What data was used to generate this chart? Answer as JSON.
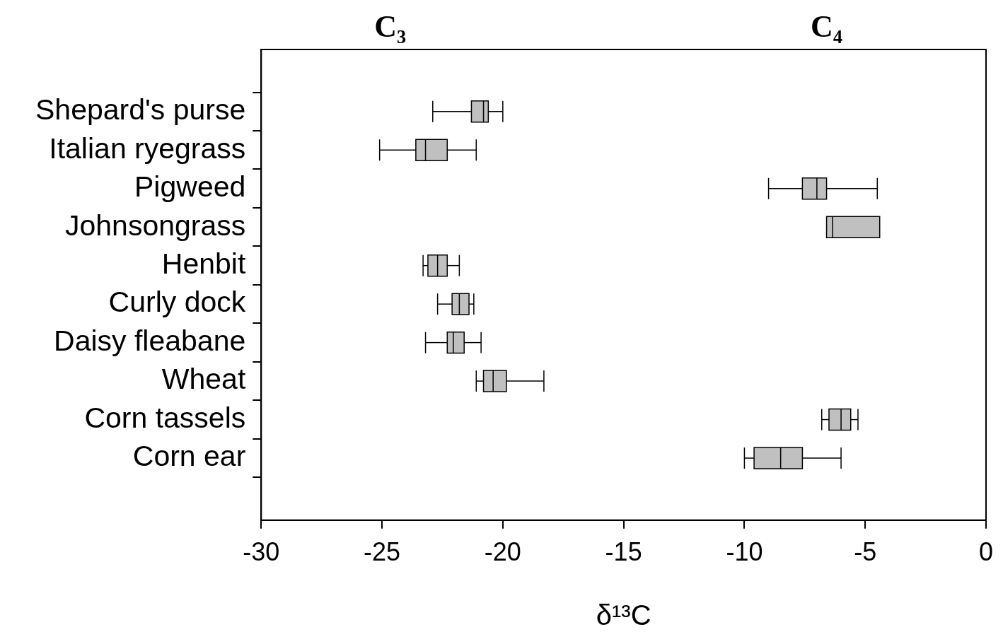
{
  "chart_data": {
    "type": "box",
    "orientation": "horizontal",
    "categories": [
      "Shepard's purse",
      "Italian ryegrass",
      "Pigweed",
      "Johnsongrass",
      "Henbit",
      "Curly dock",
      "Daisy fleabane",
      "Wheat",
      "Corn tassels",
      "Corn ear"
    ],
    "boxes": [
      {
        "low": -22.9,
        "q1": -21.3,
        "median": -20.8,
        "q3": -20.6,
        "high": -20.0
      },
      {
        "low": -25.1,
        "q1": -23.6,
        "median": -23.2,
        "q3": -22.3,
        "high": -21.1
      },
      {
        "low": -9.0,
        "q1": -7.6,
        "median": -7.0,
        "q3": -6.6,
        "high": -4.5
      },
      {
        "low": -6.6,
        "q1": -6.6,
        "median": -6.35,
        "q3": -4.4,
        "high": -4.4
      },
      {
        "low": -23.3,
        "q1": -23.1,
        "median": -22.7,
        "q3": -22.3,
        "high": -21.8
      },
      {
        "low": -22.7,
        "q1": -22.1,
        "median": -21.8,
        "q3": -21.4,
        "high": -21.2
      },
      {
        "low": -23.2,
        "q1": -22.3,
        "median": -22.05,
        "q3": -21.6,
        "high": -20.9
      },
      {
        "low": -21.1,
        "q1": -20.8,
        "median": -20.4,
        "q3": -19.85,
        "high": -18.3
      },
      {
        "low": -6.8,
        "q1": -6.5,
        "median": -6.0,
        "q3": -5.6,
        "high": -5.3
      },
      {
        "low": -10.0,
        "q1": -9.6,
        "median": -8.5,
        "q3": -7.6,
        "high": -6.0
      }
    ],
    "color": "#c0c0c0",
    "xlabel": "δ¹³C",
    "xlim": [
      -30,
      0
    ],
    "xticks": [
      -30,
      -25,
      -20,
      -15,
      -10,
      -5,
      0
    ],
    "annotations": [
      "C₃",
      "C₄"
    ],
    "grid": false,
    "legend": false
  }
}
